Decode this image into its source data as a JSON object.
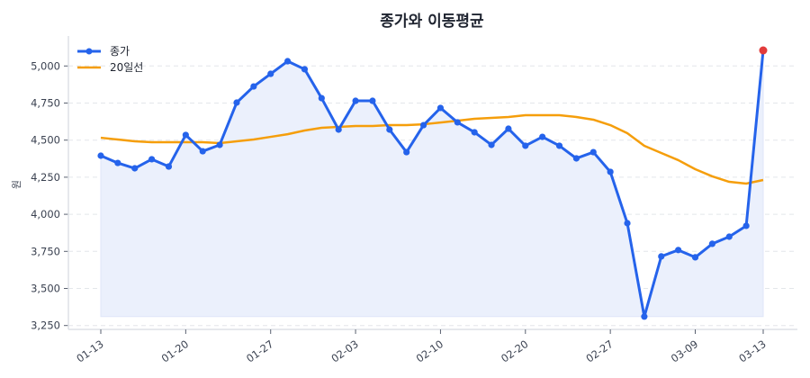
{
  "chart_data": {
    "type": "line",
    "title": "종가와 이동평균",
    "xlabel": "",
    "ylabel": "원",
    "ylim": [
      3220,
      5190
    ],
    "yticks": [
      3250,
      3500,
      3750,
      4000,
      4250,
      4500,
      4750,
      5000
    ],
    "ytick_labels": [
      "3,250",
      "3,500",
      "3,750",
      "4,000",
      "4,250",
      "4,500",
      "4,750",
      "5,000"
    ],
    "xtick_positions": [
      0,
      5,
      10,
      15,
      20,
      25,
      30,
      35,
      39
    ],
    "xtick_labels": [
      "01-13",
      "01-20",
      "01-27",
      "02-03",
      "02-10",
      "02-20",
      "02-27",
      "03-09",
      "03-13"
    ],
    "grid": "horizontal-dashed",
    "legend_position": "upper left",
    "series": [
      {
        "name": "종가",
        "color": "#2563eb",
        "marker": "circle",
        "fill_below": true,
        "fill_color": "#ebf0fc",
        "values": [
          4395,
          4346,
          4310,
          4371,
          4322,
          4535,
          4425,
          4468,
          4753,
          4862,
          4947,
          5032,
          4978,
          4783,
          4571,
          4765,
          4765,
          4571,
          4419,
          4601,
          4717,
          4620,
          4553,
          4468,
          4577,
          4462,
          4522,
          4462,
          4377,
          4419,
          4286,
          3940,
          3310,
          3716,
          3759,
          3710,
          3801,
          3849,
          3922,
          5105
        ],
        "highlight_last": {
          "color": "#e23b3b",
          "value": 5105
        }
      },
      {
        "name": "20일선",
        "color": "#f59e0b",
        "marker": "none",
        "values": [
          4516,
          4504,
          4492,
          4486,
          4486,
          4486,
          4486,
          4480,
          4492,
          4504,
          4522,
          4540,
          4565,
          4583,
          4589,
          4595,
          4595,
          4601,
          4601,
          4607,
          4619,
          4631,
          4644,
          4650,
          4656,
          4668,
          4668,
          4668,
          4656,
          4638,
          4601,
          4547,
          4462,
          4413,
          4365,
          4304,
          4256,
          4219,
          4207,
          4231
        ]
      }
    ]
  }
}
